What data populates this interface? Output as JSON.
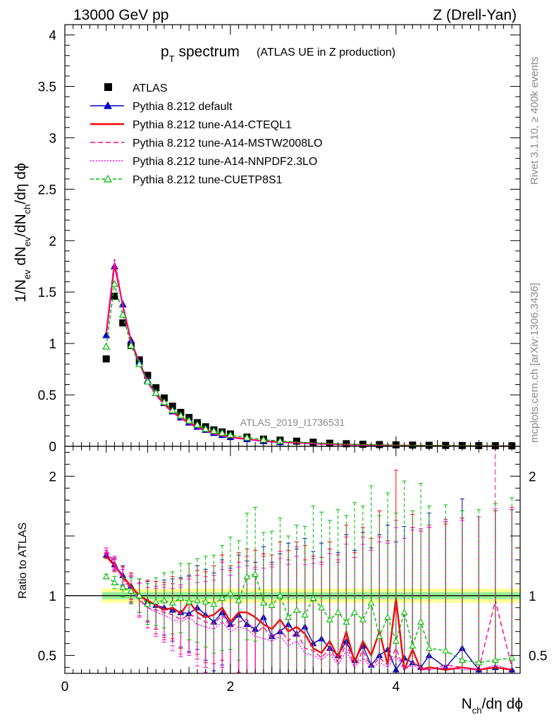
{
  "header": {
    "left": "13000 GeV pp",
    "right": "Z (Drell-Yan)"
  },
  "side_labels": {
    "rivet": "Rivet 3.1.10, ≥ 400k events",
    "mcplots": "mcplots.cern.ch [arXiv:1306.3436]"
  },
  "chart_data": [
    {
      "type": "line",
      "panel": "main",
      "title": "p",
      "title_sub": "T",
      "title_main": " spectrum",
      "subtitle": "(ATLAS UE in Z production)",
      "analysis_id": "ATLAS_2019_I1736531",
      "xlabel": "N",
      "xlabel_sub": "ch",
      "xlabel_rest": "/dη dϕ",
      "ylabel": "1/N_ev dN_ev/dN_ch/dη dϕ",
      "ylabel_parts": [
        "1/N",
        "ev",
        " dN",
        "ev",
        "/dN",
        "ch",
        "/dη dϕ"
      ],
      "xlim": [
        0,
        5.5
      ],
      "ylim": [
        0,
        4.1
      ],
      "yticks": [
        "0",
        "0.5",
        "1",
        "1.5",
        "2",
        "2.5",
        "3",
        "3.5",
        "4"
      ],
      "xticks": [
        "0",
        "2",
        "4"
      ],
      "legend": [
        {
          "name": "ATLAS",
          "color": "#000000",
          "style": "square"
        },
        {
          "name": "Pythia 8.212 default",
          "color": "#0000cc",
          "style": "triangle"
        },
        {
          "name": "Pythia 8.212 tune-A14-CTEQL1",
          "color": "#ff0000",
          "style": "solid"
        },
        {
          "name": "Pythia 8.212 tune-A14-MSTW2008LO",
          "color": "#ff0080",
          "style": "dashed"
        },
        {
          "name": "Pythia 8.212 tune-A14-NNPDF2.3LO",
          "color": "#ff00ff",
          "style": "dotted"
        },
        {
          "name": "Pythia 8.212 tune-CUETP8S1",
          "color": "#00bb00",
          "style": "open-triangle"
        }
      ],
      "x": [
        0.5,
        0.6,
        0.7,
        0.8,
        0.9,
        1.0,
        1.1,
        1.2,
        1.3,
        1.4,
        1.5,
        1.6,
        1.7,
        1.8,
        1.9,
        2.0,
        2.2,
        2.4,
        2.6,
        2.8,
        3.0,
        3.2,
        3.4,
        3.6,
        3.8,
        4.0,
        4.2,
        4.4,
        4.6,
        4.8,
        5.0,
        5.2,
        5.4
      ],
      "series": [
        {
          "name": "ATLAS",
          "values": [
            0.85,
            1.46,
            1.2,
            0.98,
            0.84,
            0.69,
            0.57,
            0.47,
            0.39,
            0.33,
            0.28,
            0.23,
            0.19,
            0.16,
            0.14,
            0.12,
            0.09,
            0.07,
            0.06,
            0.05,
            0.04,
            0.03,
            0.025,
            0.02,
            0.017,
            0.014,
            0.012,
            0.01,
            0.009,
            0.008,
            0.007,
            0.006,
            0.005
          ]
        },
        {
          "name": "Pythia 8.212 default",
          "values": [
            1.08,
            1.75,
            1.38,
            1.03,
            0.82,
            0.64,
            0.52,
            0.42,
            0.34,
            0.28,
            0.23,
            0.19,
            0.16,
            0.13,
            0.11,
            0.09,
            0.07,
            0.05,
            0.04,
            0.035,
            0.028,
            0.022,
            0.017,
            0.013,
            0.011,
            0.009,
            0.007,
            0.006,
            0.005,
            0.004,
            0.003,
            0.003,
            0.002
          ]
        },
        {
          "name": "Pythia 8.212 tune-A14-CTEQL1",
          "values": [
            1.1,
            1.78,
            1.37,
            1.02,
            0.81,
            0.63,
            0.51,
            0.41,
            0.34,
            0.28,
            0.23,
            0.19,
            0.16,
            0.13,
            0.11,
            0.09,
            0.07,
            0.05,
            0.04,
            0.035,
            0.027,
            0.021,
            0.017,
            0.013,
            0.011,
            0.009,
            0.007,
            0.006,
            0.005,
            0.004,
            0.003,
            0.003,
            0.002
          ]
        },
        {
          "name": "Pythia 8.212 tune-A14-MSTW2008LO",
          "values": [
            1.12,
            1.82,
            1.38,
            1.02,
            0.8,
            0.62,
            0.5,
            0.4,
            0.33,
            0.27,
            0.22,
            0.18,
            0.15,
            0.12,
            0.1,
            0.085,
            0.065,
            0.05,
            0.04,
            0.033,
            0.026,
            0.02,
            0.016,
            0.012,
            0.01,
            0.008,
            0.007,
            0.005,
            0.004,
            0.004,
            0.003,
            0.003,
            0.002
          ]
        },
        {
          "name": "Pythia 8.212 tune-A14-NNPDF2.3LO",
          "values": [
            1.11,
            1.8,
            1.37,
            1.01,
            0.8,
            0.62,
            0.5,
            0.4,
            0.33,
            0.27,
            0.22,
            0.18,
            0.15,
            0.12,
            0.1,
            0.085,
            0.065,
            0.05,
            0.04,
            0.033,
            0.026,
            0.02,
            0.016,
            0.012,
            0.01,
            0.008,
            0.007,
            0.005,
            0.004,
            0.004,
            0.003,
            0.003,
            0.002
          ]
        },
        {
          "name": "Pythia 8.212 tune-CUETP8S1",
          "values": [
            0.97,
            1.58,
            1.28,
            0.98,
            0.8,
            0.63,
            0.52,
            0.43,
            0.35,
            0.3,
            0.25,
            0.21,
            0.17,
            0.15,
            0.13,
            0.11,
            0.085,
            0.065,
            0.05,
            0.042,
            0.034,
            0.027,
            0.021,
            0.017,
            0.014,
            0.011,
            0.009,
            0.008,
            0.007,
            0.006,
            0.005,
            0.004,
            0.004
          ]
        }
      ]
    },
    {
      "type": "line",
      "panel": "ratio",
      "ylabel": "Ratio to ATLAS",
      "xlim": [
        0,
        5.5
      ],
      "ylim": [
        0.35,
        2.25
      ],
      "yticks_left": [
        "0.5",
        "1",
        "2"
      ],
      "yticks_right": [
        "0.5",
        "1",
        "2"
      ],
      "reference_line": 1,
      "band_inner": [
        0.97,
        1.03
      ],
      "band_outer": [
        0.94,
        1.06
      ],
      "x": [
        0.5,
        0.6,
        0.7,
        0.8,
        0.9,
        1.0,
        1.1,
        1.2,
        1.3,
        1.4,
        1.5,
        1.6,
        1.7,
        1.8,
        1.9,
        2.0,
        2.1,
        2.2,
        2.3,
        2.4,
        2.5,
        2.6,
        2.7,
        2.8,
        2.9,
        3.0,
        3.1,
        3.2,
        3.3,
        3.4,
        3.5,
        3.6,
        3.7,
        3.8,
        3.9,
        4.0,
        4.1,
        4.2,
        4.3,
        4.4,
        4.6,
        4.8,
        5.0,
        5.2,
        5.4
      ],
      "series": [
        {
          "name": "Pythia 8.212 default",
          "values": [
            1.34,
            1.26,
            1.17,
            1.08,
            1.0,
            0.95,
            0.92,
            0.9,
            0.88,
            0.86,
            0.85,
            0.9,
            0.84,
            0.78,
            0.86,
            0.76,
            0.84,
            0.76,
            0.72,
            0.82,
            0.66,
            0.7,
            0.76,
            0.68,
            0.74,
            0.6,
            0.64,
            0.56,
            0.5,
            0.62,
            0.46,
            0.58,
            0.42,
            0.5,
            0.55,
            0.38,
            0.48,
            0.44,
            0.4,
            0.5,
            0.4,
            0.56,
            0.38,
            0.4,
            0.38
          ]
        },
        {
          "name": "Pythia 8.212 tune-A14-CTEQL1",
          "values": [
            1.33,
            1.25,
            1.16,
            1.08,
            1.0,
            0.96,
            0.92,
            0.88,
            0.9,
            0.85,
            0.95,
            0.86,
            0.82,
            0.84,
            0.9,
            0.78,
            0.86,
            0.86,
            0.82,
            0.76,
            0.72,
            0.8,
            0.7,
            0.74,
            0.68,
            0.56,
            0.52,
            0.62,
            0.48,
            0.7,
            0.44,
            0.62,
            0.5,
            0.7,
            0.42,
            0.98,
            0.38,
            0.55,
            0.38,
            0.4,
            0.38,
            0.4,
            0.38,
            0.4,
            0.38
          ]
        },
        {
          "name": "Pythia 8.212 tune-A14-MSTW2008LO",
          "values": [
            1.38,
            1.28,
            1.14,
            1.06,
            0.97,
            0.9,
            0.88,
            0.86,
            0.84,
            0.8,
            0.84,
            0.82,
            0.78,
            0.76,
            0.84,
            0.74,
            0.78,
            0.8,
            0.68,
            0.74,
            0.64,
            0.72,
            0.62,
            0.7,
            0.56,
            0.54,
            0.48,
            0.56,
            0.44,
            0.6,
            0.4,
            0.54,
            0.4,
            0.48,
            0.42,
            0.56,
            0.38,
            0.44,
            0.4,
            0.38,
            0.42,
            0.4,
            0.38,
            0.96,
            0.4
          ]
        },
        {
          "name": "Pythia 8.212 tune-A14-NNPDF2.3LO",
          "values": [
            1.36,
            1.27,
            1.14,
            1.05,
            0.96,
            0.9,
            0.86,
            0.84,
            0.8,
            0.78,
            0.82,
            0.76,
            0.74,
            0.72,
            0.78,
            0.7,
            0.74,
            0.72,
            0.66,
            0.64,
            0.62,
            0.66,
            0.58,
            0.62,
            0.52,
            0.5,
            0.46,
            0.52,
            0.42,
            0.54,
            0.4,
            0.48,
            0.4,
            0.44,
            0.4,
            0.5,
            0.38,
            0.42,
            0.38,
            0.38,
            0.4,
            0.38,
            0.38,
            0.42,
            0.38
          ]
        },
        {
          "name": "Pythia 8.212 tune-CUETP8S1",
          "values": [
            1.16,
            1.11,
            1.07,
            1.04,
            1.0,
            0.93,
            0.95,
            0.96,
            0.94,
            0.98,
            0.95,
            0.96,
            0.95,
            0.93,
            0.98,
            1.02,
            0.96,
            1.16,
            1.18,
            0.94,
            0.92,
            1.0,
            0.82,
            0.88,
            0.84,
            0.98,
            0.9,
            0.8,
            0.86,
            0.78,
            0.86,
            0.8,
            0.94,
            0.66,
            0.82,
            0.62,
            0.86,
            0.58,
            0.78,
            0.56,
            0.54,
            0.46,
            0.44,
            0.46,
            0.48
          ]
        }
      ]
    }
  ]
}
